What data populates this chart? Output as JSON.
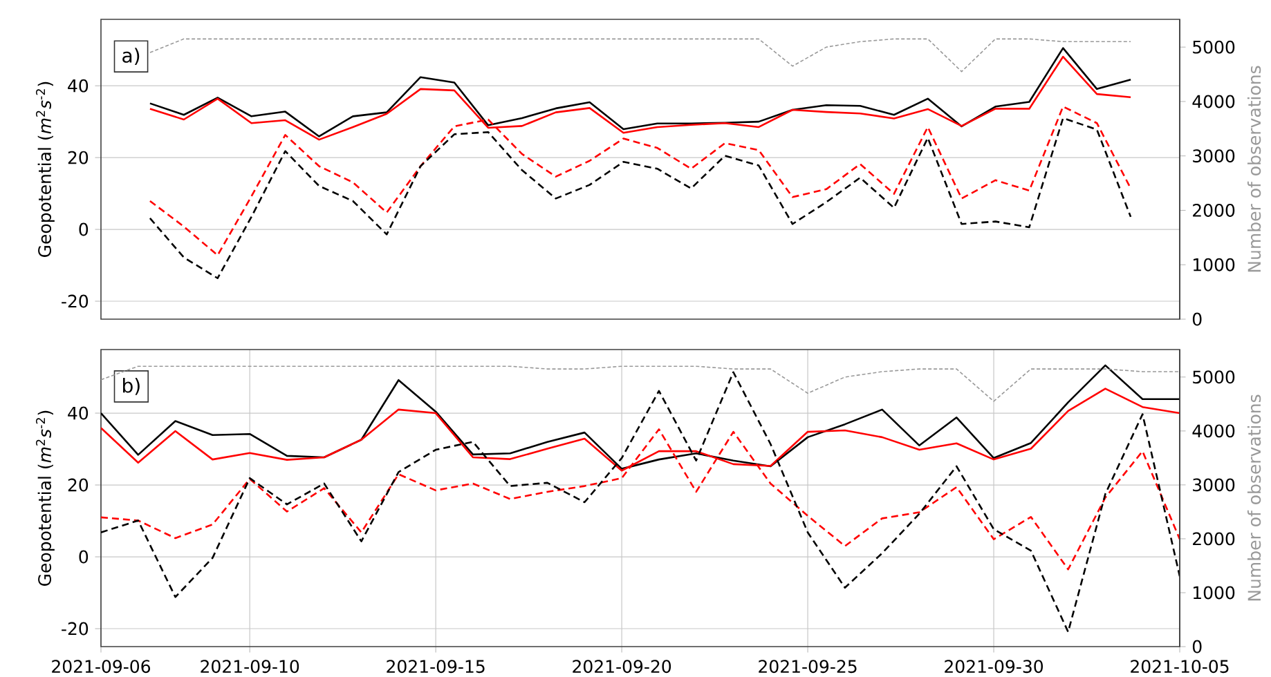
{
  "chart_data": [
    {
      "type": "line",
      "annotations": [
        "a)"
      ],
      "ylabel": "Geopotential (*m*$^{2}$*s*$^{-2}$)",
      "y2label": "Number of observations",
      "categories": [
        null,
        null,
        null,
        null,
        null,
        null,
        null,
        null,
        null,
        null,
        null,
        null,
        null,
        null,
        null,
        null,
        null,
        null,
        null,
        null,
        null,
        null,
        null,
        null,
        null,
        null,
        null,
        null,
        null,
        null
      ],
      "ylim": [
        -25,
        58.5
      ],
      "yticks": [
        -20,
        0,
        20,
        40
      ],
      "y2lim": [
        0,
        5510
      ],
      "y2ticks": [
        0,
        1000,
        2000,
        3000,
        4000,
        5000
      ],
      "grid": "y",
      "marker": "none",
      "series": [
        {
          "color": "#000000",
          "line_style": "solid",
          "values": [
            35.1,
            31.9,
            36.7,
            31.5,
            32.8,
            25.9,
            31.5,
            32.6,
            42.4,
            40.9,
            29.0,
            31.0,
            33.7,
            35.4,
            27.9,
            29.5,
            29.5,
            29.7,
            30.0,
            33.3,
            34.6,
            34.4,
            31.9,
            36.4,
            28.7,
            34.2,
            35.5,
            50.5,
            39.1,
            41.7
          ]
        },
        {
          "color": "#ff0000",
          "line_style": "solid",
          "values": [
            33.6,
            30.6,
            36.4,
            29.6,
            30.4,
            25.0,
            28.5,
            32.2,
            39.1,
            38.7,
            28.3,
            28.8,
            32.6,
            33.8,
            26.9,
            28.5,
            29.1,
            29.6,
            28.5,
            33.3,
            32.7,
            32.3,
            30.9,
            33.5,
            28.8,
            33.6,
            33.6,
            48.1,
            37.7,
            36.8
          ]
        },
        {
          "color": "#ff0000",
          "line_style": "dashed",
          "values": [
            7.9,
            0.8,
            -7.2,
            9.2,
            26.3,
            17.6,
            13.1,
            4.7,
            17.6,
            28.7,
            30.6,
            21.0,
            14.7,
            19.1,
            25.3,
            22.7,
            16.9,
            24.0,
            22.1,
            9.0,
            11.2,
            18.2,
            9.9,
            28.5,
            8.6,
            13.7,
            10.8,
            34.2,
            29.6,
            11.4
          ]
        },
        {
          "color": "#000000",
          "line_style": "dashed",
          "values": [
            3.1,
            -7.8,
            -13.6,
            3.5,
            21.8,
            12.1,
            7.9,
            -1.4,
            17.6,
            26.5,
            27.1,
            16.5,
            8.6,
            12.4,
            18.8,
            16.9,
            11.4,
            20.5,
            17.8,
            1.5,
            7.6,
            14.4,
            6.0,
            25.5,
            1.5,
            2.2,
            0.6,
            31.0,
            27.8,
            3.5
          ]
        },
        {
          "color": "#999999",
          "line_style": "dotted",
          "axis": "y2",
          "values": [
            4900,
            5150,
            5150,
            5150,
            5150,
            5150,
            5150,
            5150,
            5150,
            5150,
            5150,
            5150,
            5150,
            5150,
            5150,
            5150,
            5150,
            5150,
            5150,
            4650,
            5000,
            5100,
            5150,
            5150,
            4550,
            5150,
            5150,
            5100,
            5100,
            5100
          ]
        }
      ]
    },
    {
      "type": "line",
      "annotations": [
        "b)"
      ],
      "ylabel": "Geopotential (*m*$^{2}$*s*$^{-2}$)",
      "y2label": "Number of observations",
      "x": [
        "2021-09-06",
        "2021-09-07",
        "2021-09-08",
        "2021-09-09",
        "2021-09-10",
        "2021-09-11",
        "2021-09-12",
        "2021-09-13",
        "2021-09-14",
        "2021-09-15",
        "2021-09-16",
        "2021-09-17",
        "2021-09-18",
        "2021-09-19",
        "2021-09-20",
        "2021-09-21",
        "2021-09-22",
        "2021-09-23",
        "2021-09-24",
        "2021-09-25",
        "2021-09-26",
        "2021-09-27",
        "2021-09-28",
        "2021-09-29",
        "2021-09-30",
        "2021-10-01",
        "2021-10-02",
        "2021-10-03",
        "2021-10-04",
        "2021-10-05"
      ],
      "xlim": [
        "2021-09-06",
        "2021-10-05"
      ],
      "xticks": [
        "2021-09-06",
        "2021-09-10",
        "2021-09-15",
        "2021-09-20",
        "2021-09-25",
        "2021-09-30",
        "2021-10-05"
      ],
      "ylim": [
        -25,
        57.7
      ],
      "yticks": [
        -20,
        0,
        20,
        40
      ],
      "y2lim": [
        0,
        5510
      ],
      "y2ticks": [
        0,
        1000,
        2000,
        3000,
        4000,
        5000
      ],
      "grid": true,
      "marker": "none",
      "series": [
        {
          "color": "#000000",
          "line_style": "solid",
          "values": [
            40.0,
            28.4,
            37.8,
            33.9,
            34.2,
            28.1,
            27.7,
            32.6,
            49.2,
            40.4,
            28.5,
            28.8,
            32.0,
            34.6,
            24.5,
            27.1,
            28.8,
            26.8,
            25.2,
            33.3,
            36.9,
            41.0,
            31.0,
            38.8,
            27.5,
            31.7,
            43.0,
            53.3,
            43.9,
            43.9
          ]
        },
        {
          "color": "#ff0000",
          "line_style": "solid",
          "values": [
            35.9,
            26.2,
            35.0,
            27.1,
            28.9,
            27.0,
            27.7,
            32.6,
            41.0,
            40.0,
            27.7,
            27.2,
            30.1,
            32.9,
            24.0,
            29.4,
            29.4,
            25.8,
            25.3,
            34.8,
            35.2,
            33.3,
            29.8,
            31.6,
            27.1,
            30.1,
            40.6,
            46.8,
            41.7,
            40.0
          ]
        },
        {
          "color": "#ff0000",
          "line_style": "dashed",
          "values": [
            11.0,
            10.1,
            5.2,
            9.0,
            21.7,
            12.6,
            19.1,
            6.8,
            23.0,
            18.5,
            20.4,
            16.1,
            18.1,
            19.7,
            21.9,
            35.5,
            18.1,
            34.8,
            20.4,
            11.4,
            3.0,
            10.7,
            12.4,
            19.4,
            4.9,
            11.1,
            -3.5,
            16.5,
            29.4,
            4.9
          ]
        },
        {
          "color": "#000000",
          "line_style": "dashed",
          "values": [
            6.8,
            10.1,
            -11.2,
            -0.3,
            21.9,
            14.6,
            20.4,
            4.3,
            23.6,
            29.8,
            32.0,
            19.7,
            20.6,
            15.2,
            27.5,
            46.2,
            26.8,
            51.4,
            31.4,
            6.8,
            -8.6,
            1.0,
            12.0,
            25.2,
            7.7,
            1.7,
            -20.9,
            17.5,
            39.7,
            -5.4
          ]
        },
        {
          "color": "#999999",
          "line_style": "dotted",
          "axis": "y2",
          "values": [
            4950,
            5200,
            5200,
            5200,
            5200,
            5200,
            5200,
            5200,
            5200,
            5200,
            5200,
            5200,
            5150,
            5150,
            5200,
            5200,
            5200,
            5150,
            5150,
            4700,
            5000,
            5100,
            5150,
            5150,
            4550,
            5150,
            5150,
            5150,
            5100,
            5100
          ]
        }
      ]
    }
  ]
}
